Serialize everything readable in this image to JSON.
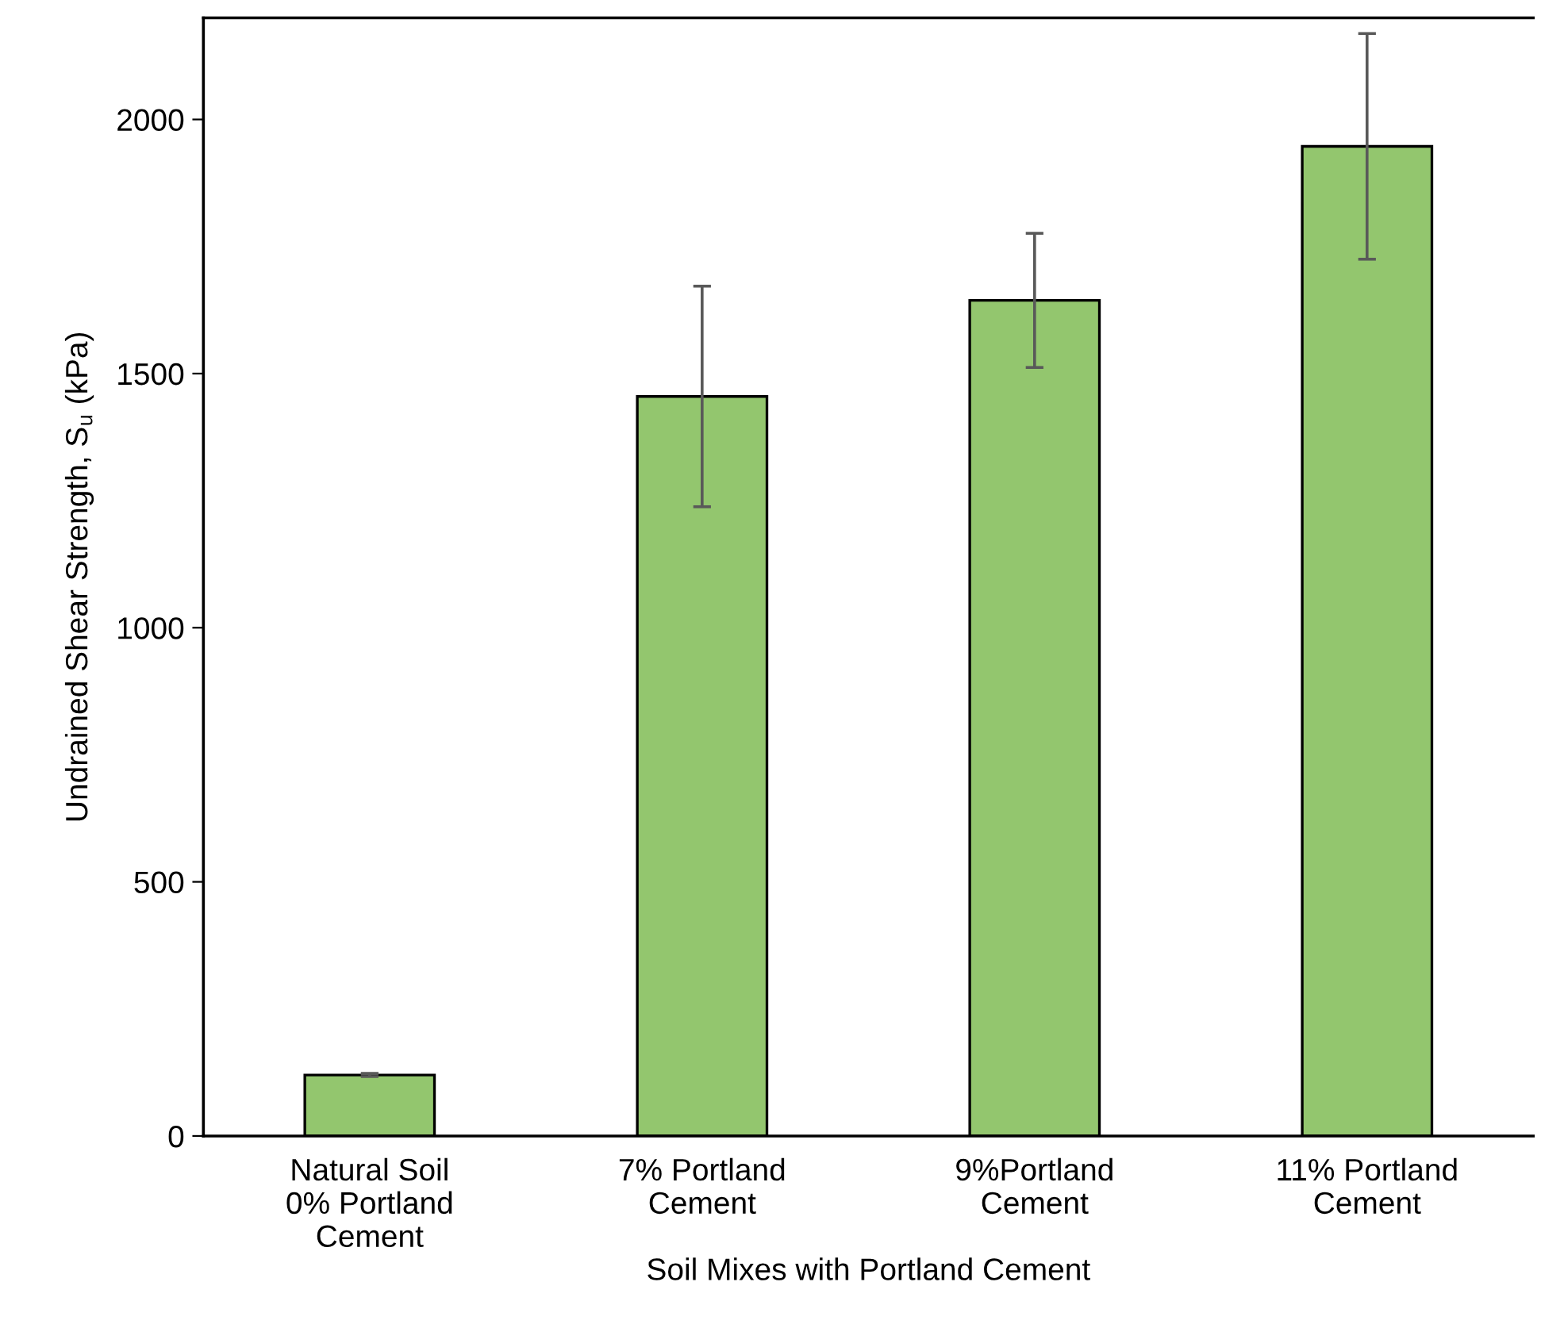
{
  "chart_data": {
    "type": "bar",
    "categories": [
      "Natural Soil\n0% Portland\nCement",
      "7% Portland\nCement",
      "9%Portland\nCement",
      "11% Portland\nCement"
    ],
    "values": [
      120,
      1455,
      1644,
      1947
    ],
    "errors": [
      3,
      217,
      132,
      222
    ],
    "color": "#93c66e",
    "xlabel": "Soil Mixes with Portland Cement",
    "ylabel": "Undrained Shear Strength, S$_{u}$ (kPa)",
    "ylim": [
      0,
      2200
    ],
    "yticks": [
      0,
      500,
      1000,
      1500,
      2000
    ],
    "grid": false,
    "legend": false
  }
}
